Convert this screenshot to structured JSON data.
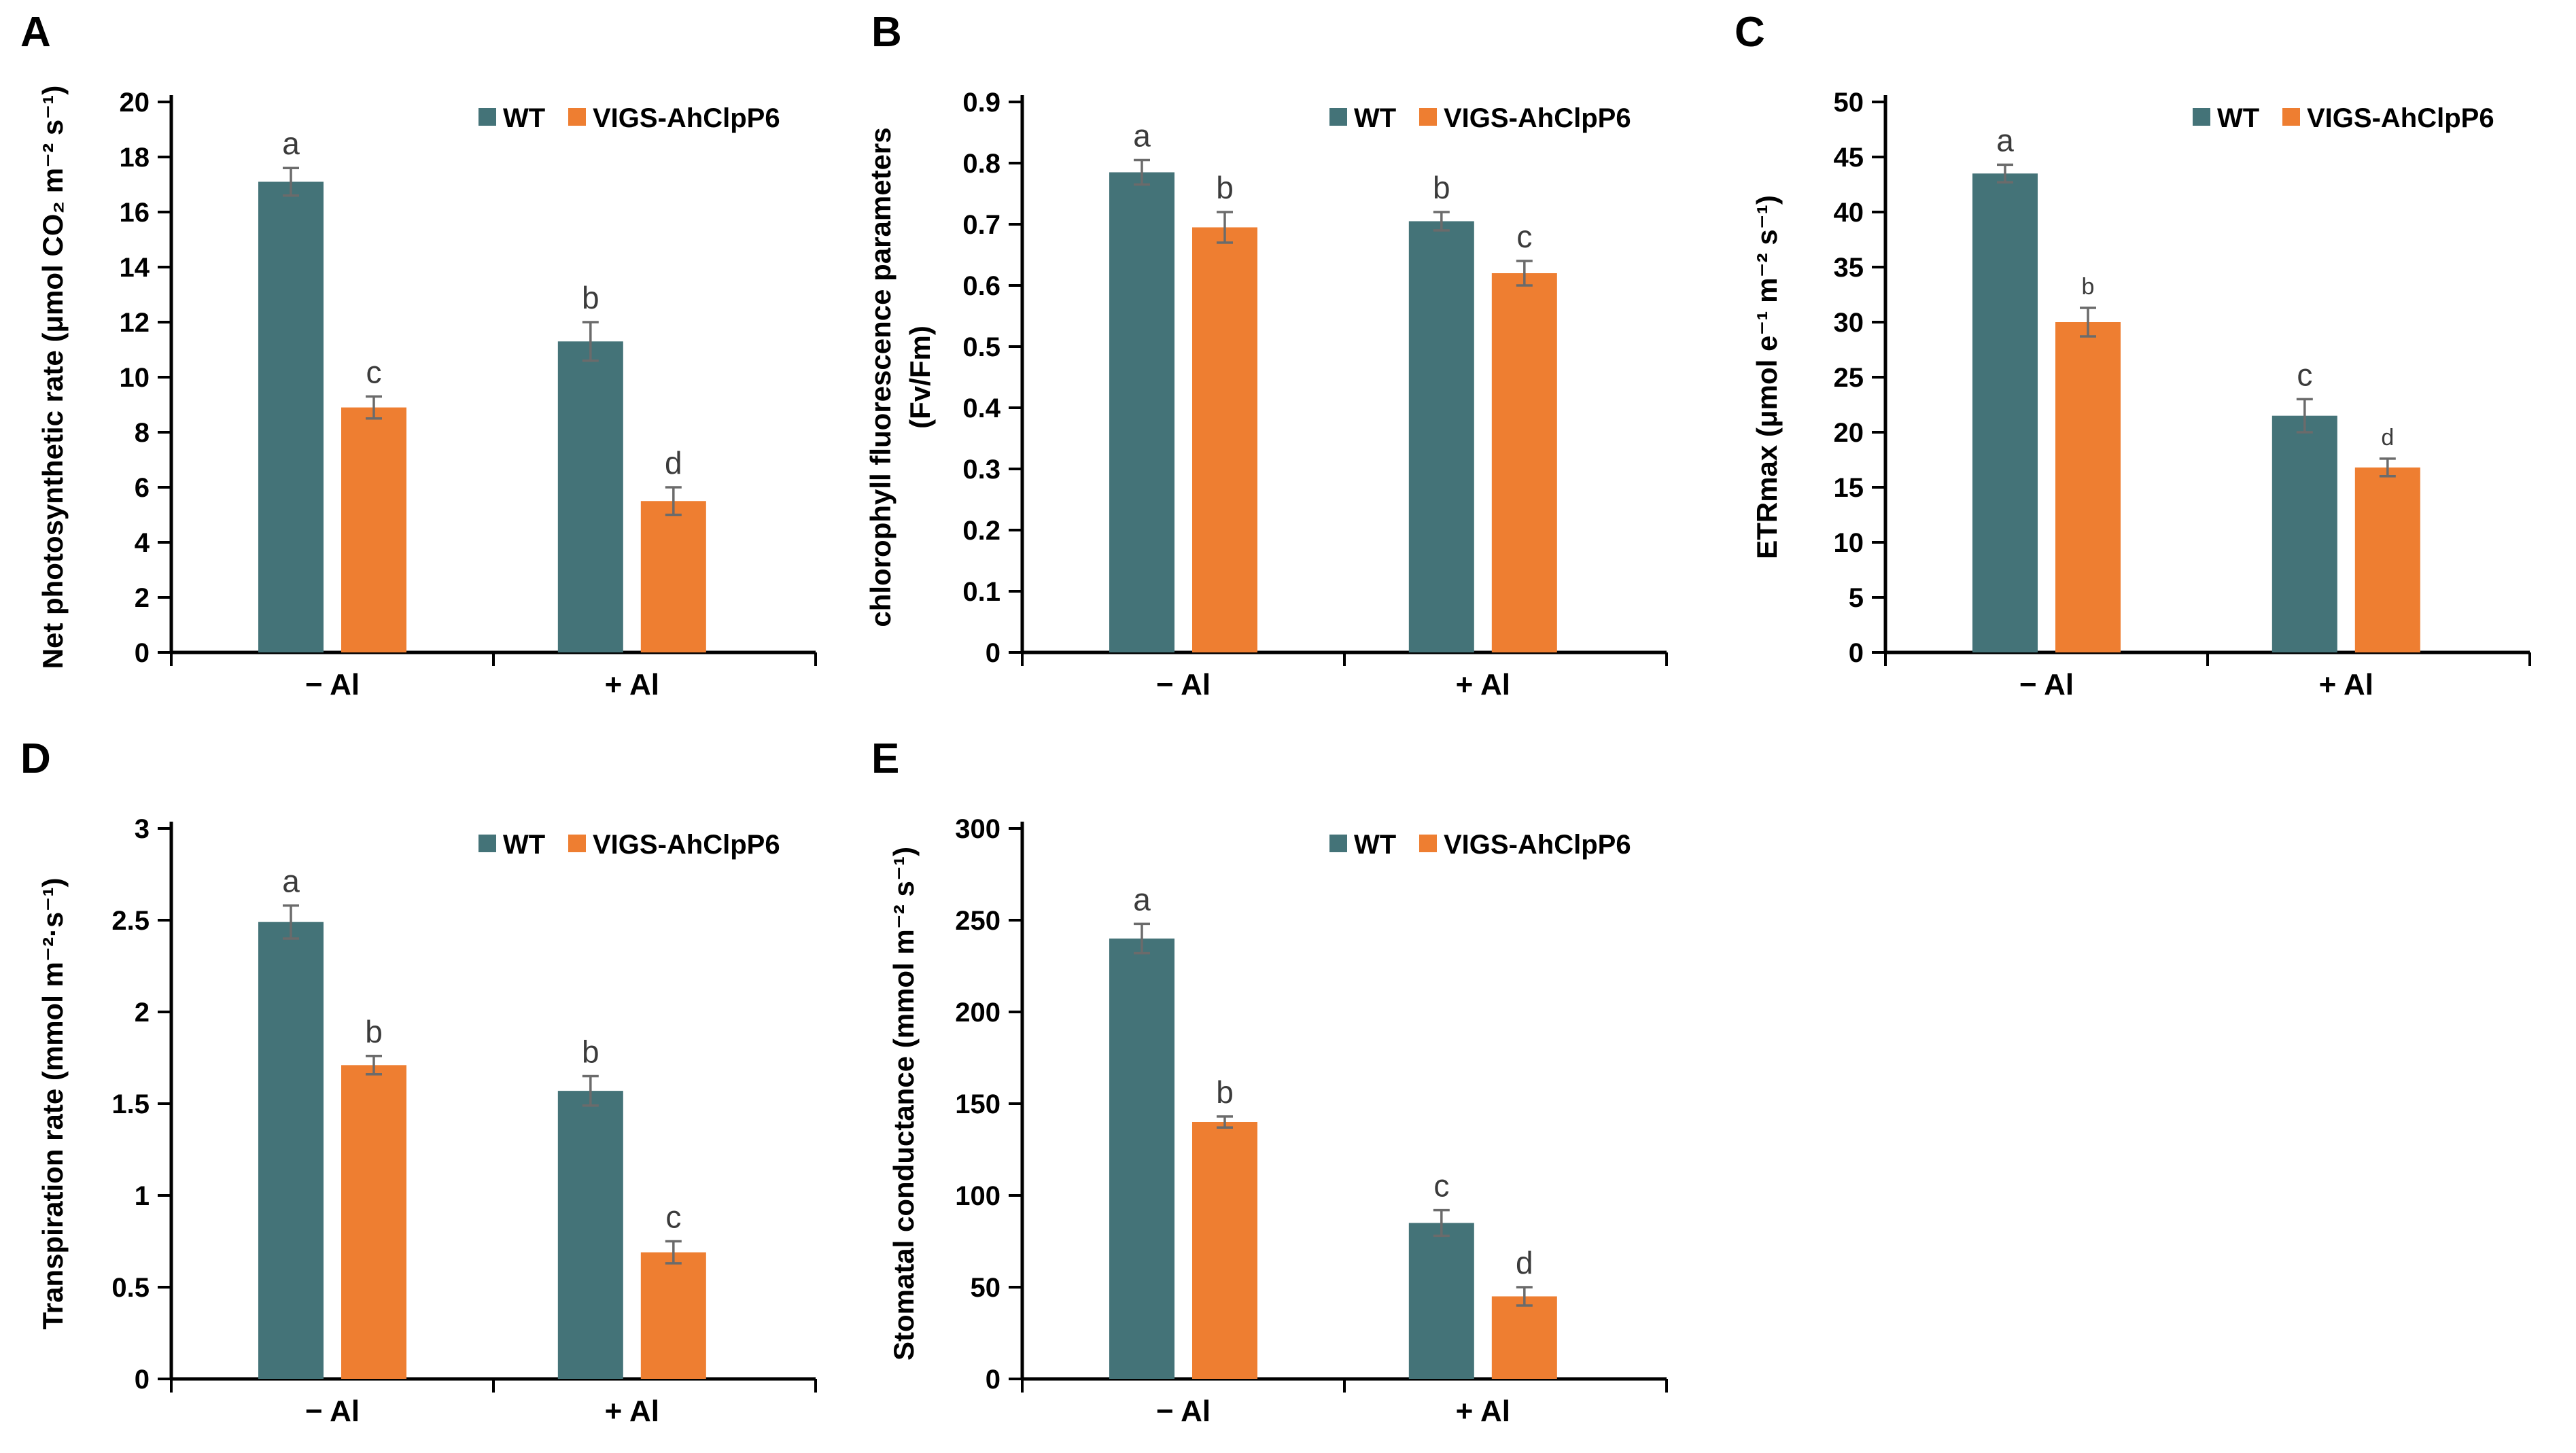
{
  "figure_title": "",
  "colors": {
    "wt_series": "#447378",
    "vigs_series": "#EE7E31",
    "error_bar": "#6b6b6b",
    "sig_letter": "#3b3b3b",
    "axis": "#000000"
  },
  "chart_data": [
    {
      "type": "bar",
      "panel_label": "A",
      "ylabel_lines": [
        "Net photosynthetic rate (μmol CO₂ m⁻² s⁻¹)"
      ],
      "categories": [
        "− Al",
        "+ Al"
      ],
      "ylim": [
        0,
        20
      ],
      "ytick_step": 2,
      "ytick_decimals": 0,
      "grid": false,
      "legend_position": "top-right",
      "legend": [
        "WT",
        "VIGS-AhClpP6"
      ],
      "series": [
        {
          "name": "WT",
          "color": "#447378",
          "values": [
            17.1,
            11.3
          ],
          "errors": [
            0.5,
            0.7
          ],
          "sig_letters": [
            "a",
            "b"
          ]
        },
        {
          "name": "VIGS-AhClpP6",
          "color": "#EE7E31",
          "values": [
            8.9,
            5.5
          ],
          "errors": [
            0.4,
            0.5
          ],
          "sig_letters": [
            "c",
            "d"
          ]
        }
      ]
    },
    {
      "type": "bar",
      "panel_label": "B",
      "ylabel_lines": [
        "chlorophyll fluorescence parameters",
        "(Fv/Fm)"
      ],
      "categories": [
        "− Al",
        "+ Al"
      ],
      "ylim": [
        0,
        0.9
      ],
      "ytick_step": 0.1,
      "ytick_decimals": 1,
      "grid": false,
      "legend_position": "top-right",
      "legend": [
        "WT",
        "VIGS-AhClpP6"
      ],
      "series": [
        {
          "name": "WT",
          "color": "#447378",
          "values": [
            0.785,
            0.705
          ],
          "errors": [
            0.02,
            0.015
          ],
          "sig_letters": [
            "a",
            "b"
          ]
        },
        {
          "name": "VIGS-AhClpP6",
          "color": "#EE7E31",
          "values": [
            0.695,
            0.62
          ],
          "errors": [
            0.025,
            0.02
          ],
          "sig_letters": [
            "b",
            "c"
          ]
        }
      ]
    },
    {
      "type": "bar",
      "panel_label": "C",
      "ylabel_lines": [
        "ETRmax (μmol e⁻¹ m⁻² s⁻¹)"
      ],
      "categories": [
        "− Al",
        "+ Al"
      ],
      "ylim": [
        0,
        50
      ],
      "ytick_step": 5,
      "ytick_decimals": 0,
      "grid": false,
      "legend_position": "top-right",
      "letter_sizes": [
        46,
        34
      ],
      "legend": [
        "WT",
        "VIGS-AhClpP6"
      ],
      "series": [
        {
          "name": "WT",
          "color": "#447378",
          "values": [
            43.5,
            21.5
          ],
          "errors": [
            0.8,
            1.5
          ],
          "sig_letters": [
            "a",
            "c"
          ]
        },
        {
          "name": "VIGS-AhClpP6",
          "color": "#EE7E31",
          "values": [
            30,
            16.8
          ],
          "errors": [
            1.3,
            0.8
          ],
          "sig_letters": [
            "b",
            "d"
          ]
        }
      ]
    },
    {
      "type": "bar",
      "panel_label": "D",
      "ylabel_lines": [
        "Transpiration rate (mmol m⁻²·s⁻¹)"
      ],
      "categories": [
        "− Al",
        "+ Al"
      ],
      "ylim": [
        0,
        3
      ],
      "ytick_step": 0.5,
      "ytick_decimals": 1,
      "grid": false,
      "legend_position": "top-right",
      "legend": [
        "WT",
        "VIGS-AhClpP6"
      ],
      "series": [
        {
          "name": "WT",
          "color": "#447378",
          "values": [
            2.49,
            1.57
          ],
          "errors": [
            0.09,
            0.08
          ],
          "sig_letters": [
            "a",
            "b"
          ]
        },
        {
          "name": "VIGS-AhClpP6",
          "color": "#EE7E31",
          "values": [
            1.71,
            0.69
          ],
          "errors": [
            0.05,
            0.06
          ],
          "sig_letters": [
            "b",
            "c"
          ]
        }
      ]
    },
    {
      "type": "bar",
      "panel_label": "E",
      "ylabel_lines": [
        "Stomatal conductance (mmol m⁻² s⁻¹)"
      ],
      "categories": [
        "− Al",
        "+ Al"
      ],
      "ylim": [
        0,
        300
      ],
      "ytick_step": 50,
      "ytick_decimals": 0,
      "grid": false,
      "legend_position": "top-right",
      "legend": [
        "WT",
        "VIGS-AhClpP6"
      ],
      "series": [
        {
          "name": "WT",
          "color": "#447378",
          "values": [
            240,
            85
          ],
          "errors": [
            8,
            7
          ],
          "sig_letters": [
            "a",
            "c"
          ]
        },
        {
          "name": "VIGS-AhClpP6",
          "color": "#EE7E31",
          "values": [
            140,
            45
          ],
          "errors": [
            3,
            5
          ],
          "sig_letters": [
            "b",
            "d"
          ]
        }
      ]
    }
  ]
}
